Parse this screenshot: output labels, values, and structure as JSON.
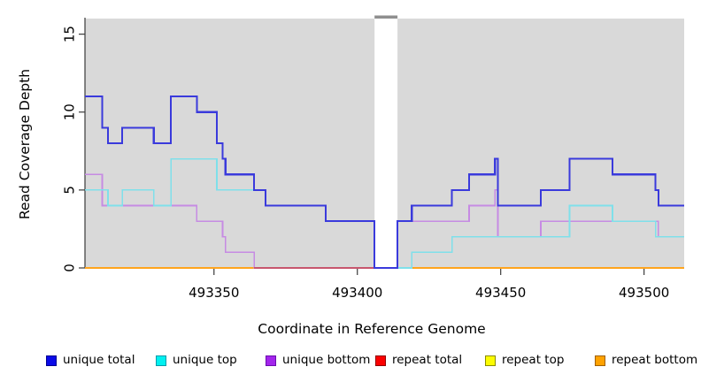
{
  "figure": {
    "description": "read coverage depth step plot"
  },
  "chart_data": {
    "type": "line",
    "subtype": "step",
    "title": "",
    "xlabel": "Coordinate in Reference Genome",
    "ylabel": "Read Coverage Depth",
    "xlim": [
      493305,
      493514
    ],
    "ylim": [
      0,
      16
    ],
    "xticks": [
      493350,
      493400,
      493450,
      493500
    ],
    "yticks": [
      0,
      5,
      10,
      15
    ],
    "grid": false,
    "plot_bg": "#d9d9d9",
    "gap_region": {
      "from": 493406,
      "to": 493414,
      "fill": "#ffffff",
      "cap_color": "#8f8f8f"
    },
    "axis_color": "#3a3a3a",
    "tick_label_color": "#000000",
    "series": [
      {
        "name": "repeat top",
        "color": "#ecec20",
        "width": 1.5,
        "steps": [
          [
            493305,
            0
          ]
        ]
      },
      {
        "name": "repeat total",
        "color": "#e03030",
        "width": 1.5,
        "steps": [
          [
            493305,
            0
          ]
        ]
      },
      {
        "name": "repeat bottom",
        "color": "#ffa41e",
        "width": 2,
        "steps": [
          [
            493305,
            0
          ]
        ]
      },
      {
        "name": "unique bottom",
        "color": "#c68be3",
        "width": 1.7,
        "steps": [
          [
            493305,
            6
          ],
          [
            493311,
            4
          ],
          [
            493344,
            3
          ],
          [
            493353,
            2
          ],
          [
            493354,
            1
          ],
          [
            493364,
            0
          ],
          [
            493414,
            3
          ],
          [
            493439,
            4
          ],
          [
            493448,
            5
          ],
          [
            493449,
            2
          ],
          [
            493464,
            3
          ],
          [
            493505,
            2
          ]
        ]
      },
      {
        "name": "repeat total visible segment",
        "color": "#c7566e",
        "width": 1.8,
        "steps": [
          [
            493364,
            0
          ]
        ],
        "end": 493406
      },
      {
        "name": "unique top",
        "color": "#7fe0ea",
        "width": 1.7,
        "steps": [
          [
            493305,
            5
          ],
          [
            493313,
            4
          ],
          [
            493318,
            5
          ],
          [
            493329,
            4
          ],
          [
            493335,
            7
          ],
          [
            493351,
            5
          ],
          [
            493368,
            4
          ],
          [
            493389,
            3
          ],
          [
            493406,
            0
          ],
          [
            493419,
            1
          ],
          [
            493433,
            2
          ],
          [
            493474,
            4
          ],
          [
            493489,
            3
          ],
          [
            493504,
            2
          ]
        ]
      },
      {
        "name": "unique total",
        "color": "#3a3adc",
        "width": 2.1,
        "steps": [
          [
            493305,
            11
          ],
          [
            493311,
            9
          ],
          [
            493313,
            8
          ],
          [
            493318,
            9
          ],
          [
            493329,
            8
          ],
          [
            493335,
            11
          ],
          [
            493344,
            10
          ],
          [
            493351,
            8
          ],
          [
            493353,
            7
          ],
          [
            493354,
            6
          ],
          [
            493364,
            5
          ],
          [
            493368,
            4
          ],
          [
            493389,
            3
          ],
          [
            493406,
            0
          ],
          [
            493414,
            3
          ],
          [
            493419,
            4
          ],
          [
            493433,
            5
          ],
          [
            493439,
            6
          ],
          [
            493448,
            7
          ],
          [
            493449,
            4
          ],
          [
            493464,
            5
          ],
          [
            493474,
            7
          ],
          [
            493489,
            6
          ],
          [
            493504,
            5
          ],
          [
            493505,
            4
          ]
        ]
      }
    ]
  },
  "legend": {
    "position": "bottom",
    "entries": [
      {
        "label": "unique total",
        "fill": "#0a0ae8",
        "border": "#000090"
      },
      {
        "label": "unique top",
        "fill": "#00f0f0",
        "border": "#009aaa"
      },
      {
        "label": "unique bottom",
        "fill": "#a325ec",
        "border": "#6a0dad"
      },
      {
        "label": "repeat total",
        "fill": "#fb0000",
        "border": "#900000"
      },
      {
        "label": "repeat top",
        "fill": "#fcfc00",
        "border": "#8b8b00"
      },
      {
        "label": "repeat bottom",
        "fill": "#ffa200",
        "border": "#a06000"
      }
    ]
  }
}
